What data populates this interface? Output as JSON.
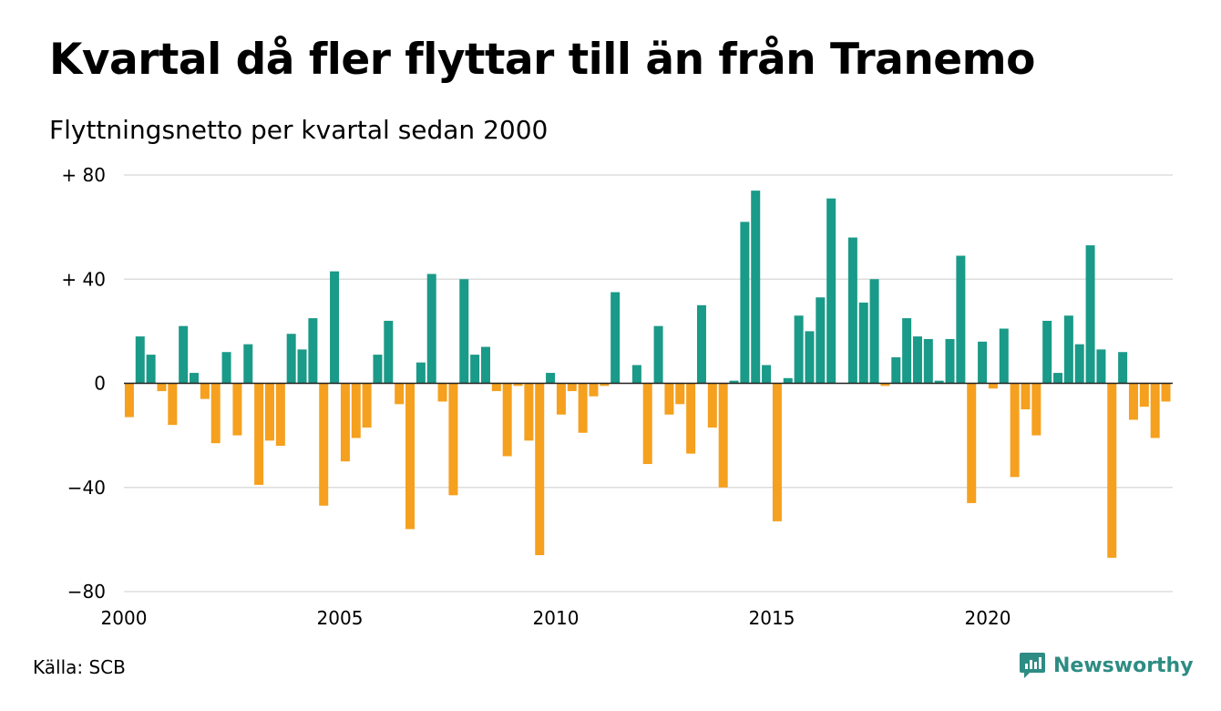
{
  "title": "Kvartal då fler flyttar till än från Tranemo",
  "subtitle": "Flyttningsnetto per kvartal sedan 2000",
  "source": "Källa: SCB",
  "brand": {
    "name": "Newsworthy",
    "icon": "newsworthy-logo-icon",
    "color": "#2d8c83"
  },
  "colors": {
    "positive": "#1a9a88",
    "negative": "#f5a01e",
    "grid": "#dddddd"
  },
  "chart_data": {
    "type": "bar",
    "title": "Kvartal då fler flyttar till än från Tranemo",
    "subtitle": "Flyttningsnetto per kvartal sedan 2000",
    "xlabel": "",
    "ylabel": "",
    "ylim": [
      -80,
      80
    ],
    "grid": true,
    "yticks": [
      {
        "value": 80,
        "label": "+ 80"
      },
      {
        "value": 40,
        "label": "+ 40"
      },
      {
        "value": 0,
        "label": "0"
      },
      {
        "value": -40,
        "label": "−40"
      },
      {
        "value": -80,
        "label": "−80"
      }
    ],
    "xticks": [
      {
        "year": 2000,
        "label": "2000"
      },
      {
        "year": 2005,
        "label": "2005"
      },
      {
        "year": 2010,
        "label": "2010"
      },
      {
        "year": 2015,
        "label": "2015"
      },
      {
        "year": 2020,
        "label": "2020"
      }
    ],
    "start_year": 2000,
    "start_quarter": 1,
    "values": [
      -13,
      18,
      11,
      -3,
      -16,
      22,
      4,
      -6,
      -23,
      12,
      -20,
      15,
      -39,
      -22,
      -24,
      19,
      13,
      25,
      -47,
      43,
      -30,
      -21,
      -17,
      11,
      24,
      -8,
      -56,
      8,
      42,
      -7,
      -43,
      40,
      11,
      14,
      -3,
      -28,
      -1,
      -22,
      -66,
      4,
      -12,
      -3,
      -19,
      -5,
      -1,
      35,
      0,
      7,
      -31,
      22,
      -12,
      -8,
      -27,
      30,
      -17,
      -40,
      1,
      62,
      74,
      7,
      -53,
      2,
      26,
      20,
      33,
      71,
      0,
      56,
      31,
      40,
      -1,
      10,
      25,
      18,
      17,
      1,
      17,
      49,
      -46,
      16,
      -2,
      21,
      -36,
      -10,
      -20,
      24,
      4,
      26,
      15,
      53,
      13,
      -67,
      12,
      -14,
      -9,
      -21,
      -7
    ]
  }
}
